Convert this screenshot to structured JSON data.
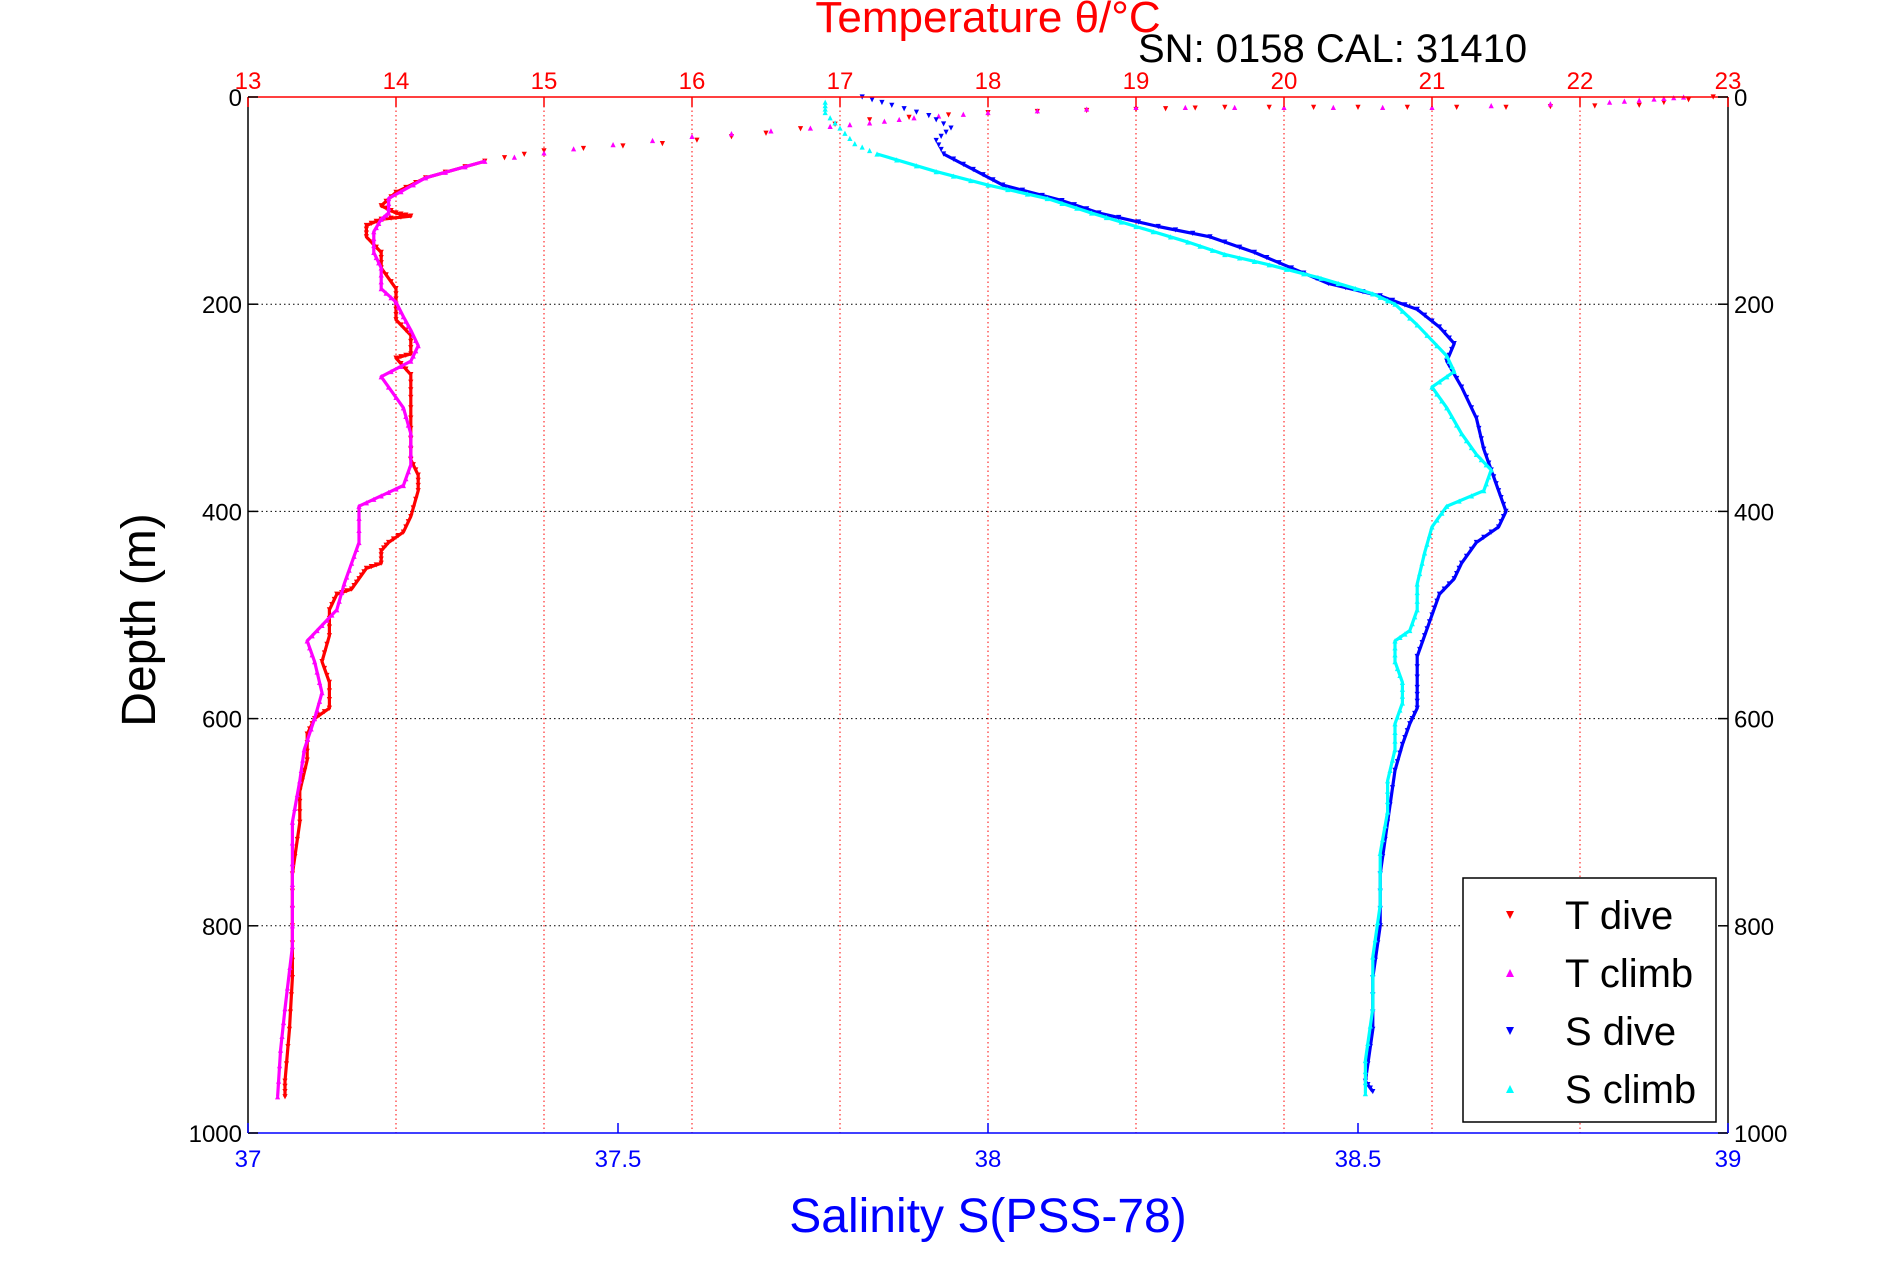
{
  "chart_data": {
    "type": "scatter",
    "title": "Temperature θ/°C",
    "subtitle": "SN: 0158  CAL: 31410",
    "xlabel": "Salinity S(PSS-78)",
    "ylabel": "Depth (m)",
    "x_top": {
      "label": "Temperature θ/°C",
      "range": [
        13,
        23
      ],
      "ticks": [
        "13",
        "14",
        "15",
        "16",
        "17",
        "18",
        "19",
        "20",
        "21",
        "22",
        "23"
      ],
      "color": "#ff0000",
      "grid": true
    },
    "x_bottom": {
      "label": "Salinity S(PSS-78)",
      "range": [
        37,
        39
      ],
      "ticks": [
        "37",
        "37.5",
        "38",
        "38.5",
        "39"
      ],
      "color": "#0000ff"
    },
    "y": {
      "label": "Depth (m)",
      "range": [
        0,
        1000
      ],
      "reversed": true,
      "ticks": [
        "0",
        "200",
        "400",
        "600",
        "800",
        "1000"
      ],
      "grid": true
    },
    "legend": {
      "placement": "bottom-right",
      "entries": [
        "T dive",
        "T climb",
        "S dive",
        "S climb"
      ]
    },
    "series": [
      {
        "name": "T dive",
        "axis": "temperature",
        "marker": "down-triangle",
        "color": "#ff0000",
        "points": [
          [
            22.9,
            0
          ],
          [
            22.4,
            8
          ],
          [
            21.5,
            10
          ],
          [
            20.5,
            10
          ],
          [
            19.6,
            10
          ],
          [
            19.0,
            12
          ],
          [
            18.0,
            15
          ],
          [
            17.2,
            22
          ],
          [
            16.5,
            35
          ],
          [
            15.8,
            45
          ],
          [
            15.0,
            52
          ],
          [
            14.6,
            62
          ],
          [
            14.2,
            78
          ],
          [
            14.0,
            92
          ],
          [
            13.9,
            105
          ],
          [
            14.0,
            112
          ],
          [
            14.1,
            115
          ],
          [
            13.9,
            118
          ],
          [
            13.8,
            124
          ],
          [
            13.8,
            135
          ],
          [
            13.9,
            150
          ],
          [
            13.9,
            165
          ],
          [
            14.0,
            185
          ],
          [
            14.0,
            200
          ],
          [
            14.0,
            215
          ],
          [
            14.1,
            230
          ],
          [
            14.1,
            248
          ],
          [
            14.0,
            252
          ],
          [
            14.1,
            268
          ],
          [
            14.1,
            290
          ],
          [
            14.1,
            320
          ],
          [
            14.1,
            350
          ],
          [
            14.15,
            365
          ],
          [
            14.15,
            380
          ],
          [
            14.1,
            405
          ],
          [
            14.05,
            420
          ],
          [
            13.95,
            430
          ],
          [
            13.9,
            438
          ],
          [
            13.9,
            450
          ],
          [
            13.8,
            455
          ],
          [
            13.75,
            465
          ],
          [
            13.7,
            475
          ],
          [
            13.6,
            480
          ],
          [
            13.55,
            495
          ],
          [
            13.55,
            520
          ],
          [
            13.5,
            545
          ],
          [
            13.55,
            565
          ],
          [
            13.55,
            590
          ],
          [
            13.45,
            600
          ],
          [
            13.4,
            615
          ],
          [
            13.4,
            640
          ],
          [
            13.35,
            670
          ],
          [
            13.35,
            700
          ],
          [
            13.3,
            750
          ],
          [
            13.3,
            800
          ],
          [
            13.3,
            850
          ],
          [
            13.28,
            900
          ],
          [
            13.25,
            950
          ],
          [
            13.25,
            965
          ]
        ]
      },
      {
        "name": "T climb",
        "axis": "temperature",
        "marker": "up-triangle",
        "color": "#ff00ff",
        "points": [
          [
            13.2,
            965
          ],
          [
            13.22,
            920
          ],
          [
            13.25,
            880
          ],
          [
            13.3,
            820
          ],
          [
            13.3,
            760
          ],
          [
            13.3,
            700
          ],
          [
            13.35,
            660
          ],
          [
            13.38,
            630
          ],
          [
            13.45,
            600
          ],
          [
            13.5,
            575
          ],
          [
            13.45,
            545
          ],
          [
            13.4,
            525
          ],
          [
            13.5,
            510
          ],
          [
            13.6,
            495
          ],
          [
            13.65,
            470
          ],
          [
            13.7,
            450
          ],
          [
            13.75,
            430
          ],
          [
            13.75,
            395
          ],
          [
            13.9,
            385
          ],
          [
            14.05,
            375
          ],
          [
            14.1,
            355
          ],
          [
            14.1,
            325
          ],
          [
            14.05,
            300
          ],
          [
            13.9,
            270
          ],
          [
            14.1,
            255
          ],
          [
            14.15,
            240
          ],
          [
            14.1,
            225
          ],
          [
            14.05,
            212
          ],
          [
            14.0,
            198
          ],
          [
            13.9,
            185
          ],
          [
            13.9,
            165
          ],
          [
            13.85,
            150
          ],
          [
            13.85,
            130
          ],
          [
            13.9,
            118
          ],
          [
            13.95,
            112
          ],
          [
            13.95,
            98
          ],
          [
            14.2,
            78
          ],
          [
            14.6,
            62
          ],
          [
            15.2,
            50
          ],
          [
            16.0,
            38
          ],
          [
            16.8,
            30
          ],
          [
            17.2,
            25
          ],
          [
            17.5,
            20
          ],
          [
            18.0,
            15
          ],
          [
            19.0,
            10
          ],
          [
            20.0,
            10
          ],
          [
            21.0,
            10
          ],
          [
            22.2,
            5
          ],
          [
            22.5,
            2
          ],
          [
            22.7,
            0
          ]
        ]
      },
      {
        "name": "S dive",
        "axis": "salinity",
        "marker": "down-triangle",
        "color": "#0000ff",
        "points": [
          [
            37.83,
            0
          ],
          [
            37.87,
            8
          ],
          [
            37.92,
            18
          ],
          [
            37.95,
            30
          ],
          [
            37.93,
            42
          ],
          [
            37.94,
            55
          ],
          [
            37.98,
            70
          ],
          [
            38.02,
            85
          ],
          [
            38.1,
            100
          ],
          [
            38.15,
            112
          ],
          [
            38.23,
            125
          ],
          [
            38.3,
            135
          ],
          [
            38.36,
            150
          ],
          [
            38.41,
            165
          ],
          [
            38.46,
            180
          ],
          [
            38.53,
            192
          ],
          [
            38.58,
            205
          ],
          [
            38.61,
            222
          ],
          [
            38.63,
            238
          ],
          [
            38.62,
            255
          ],
          [
            38.64,
            280
          ],
          [
            38.66,
            310
          ],
          [
            38.67,
            340
          ],
          [
            38.68,
            360
          ],
          [
            38.69,
            380
          ],
          [
            38.7,
            400
          ],
          [
            38.69,
            415
          ],
          [
            38.66,
            430
          ],
          [
            38.64,
            450
          ],
          [
            38.63,
            465
          ],
          [
            38.61,
            480
          ],
          [
            38.6,
            500
          ],
          [
            38.59,
            520
          ],
          [
            38.58,
            540
          ],
          [
            38.58,
            570
          ],
          [
            38.58,
            590
          ],
          [
            38.57,
            605
          ],
          [
            38.56,
            625
          ],
          [
            38.55,
            650
          ],
          [
            38.54,
            700
          ],
          [
            38.53,
            750
          ],
          [
            38.53,
            800
          ],
          [
            38.52,
            850
          ],
          [
            38.52,
            900
          ],
          [
            38.51,
            950
          ],
          [
            38.52,
            960
          ]
        ]
      },
      {
        "name": "S climb",
        "axis": "salinity",
        "marker": "up-triangle",
        "color": "#00ffff",
        "points": [
          [
            38.51,
            962
          ],
          [
            38.51,
            930
          ],
          [
            38.52,
            880
          ],
          [
            38.52,
            830
          ],
          [
            38.53,
            780
          ],
          [
            38.53,
            730
          ],
          [
            38.54,
            690
          ],
          [
            38.54,
            660
          ],
          [
            38.55,
            630
          ],
          [
            38.55,
            605
          ],
          [
            38.56,
            585
          ],
          [
            38.56,
            565
          ],
          [
            38.55,
            545
          ],
          [
            38.55,
            525
          ],
          [
            38.57,
            515
          ],
          [
            38.58,
            495
          ],
          [
            38.58,
            470
          ],
          [
            38.59,
            440
          ],
          [
            38.6,
            415
          ],
          [
            38.62,
            395
          ],
          [
            38.67,
            380
          ],
          [
            38.68,
            360
          ],
          [
            38.66,
            345
          ],
          [
            38.64,
            325
          ],
          [
            38.62,
            300
          ],
          [
            38.6,
            280
          ],
          [
            38.63,
            265
          ],
          [
            38.62,
            250
          ],
          [
            38.58,
            220
          ],
          [
            38.55,
            200
          ],
          [
            38.52,
            190
          ],
          [
            38.45,
            175
          ],
          [
            38.38,
            162
          ],
          [
            38.32,
            152
          ],
          [
            38.27,
            140
          ],
          [
            38.2,
            125
          ],
          [
            38.14,
            112
          ],
          [
            38.08,
            98
          ],
          [
            38.0,
            85
          ],
          [
            37.93,
            72
          ],
          [
            37.85,
            55
          ],
          [
            37.82,
            45
          ],
          [
            37.8,
            30
          ],
          [
            37.78,
            15
          ],
          [
            37.78,
            5
          ]
        ]
      }
    ]
  }
}
